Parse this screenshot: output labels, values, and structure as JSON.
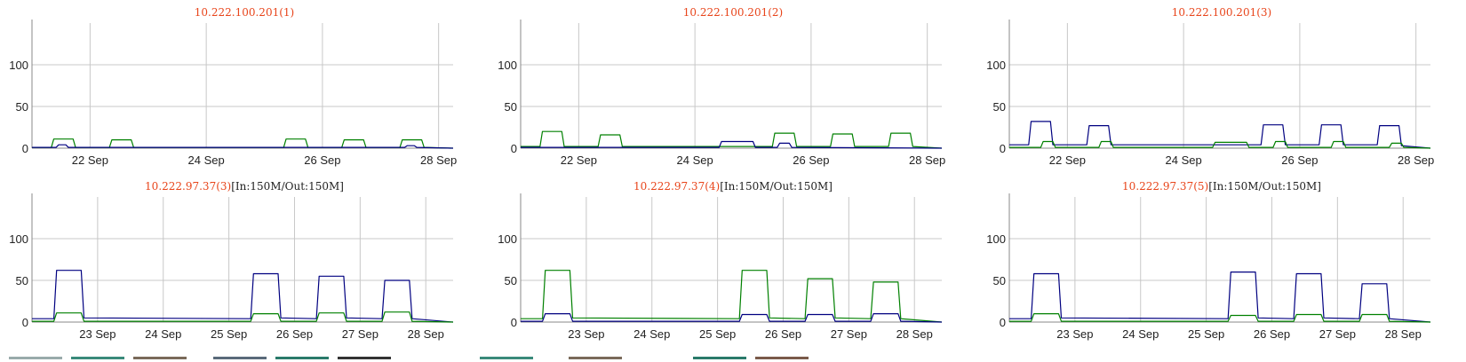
{
  "colors": {
    "in": "#000080",
    "out": "#008000",
    "grid": "#c8c8c8",
    "title": "#e8451b"
  },
  "chart_data": [
    {
      "type": "line",
      "title": "10.222.100.201(1)",
      "subtitle": "",
      "ylim": [
        0,
        150
      ],
      "yticks": [
        0,
        50,
        100
      ],
      "xlim": [
        "2016-09-21T00:00",
        "2016-09-28T06:00"
      ],
      "xticks": [
        "2016-09-22",
        "2016-09-24",
        "2016-09-26",
        "2016-09-28"
      ],
      "xtick_labels": [
        "22 Sep",
        "24 Sep",
        "26 Sep",
        "28 Sep"
      ],
      "grid": true,
      "series": [
        {
          "color": "#008000",
          "x": [
            "2016-09-21T00:00",
            "2016-09-21T08:00",
            "2016-09-21T09:00",
            "2016-09-21T17:00",
            "2016-09-21T18:00",
            "2016-09-22T08:00",
            "2016-09-22T09:00",
            "2016-09-22T17:00",
            "2016-09-22T18:00",
            "2016-09-25T08:00",
            "2016-09-25T09:00",
            "2016-09-25T17:00",
            "2016-09-25T18:00",
            "2016-09-26T08:00",
            "2016-09-26T09:00",
            "2016-09-26T17:00",
            "2016-09-26T18:00",
            "2016-09-27T08:00",
            "2016-09-27T09:00",
            "2016-09-27T17:00",
            "2016-09-27T18:00",
            "2016-09-28T06:00"
          ],
          "y": [
            1,
            1,
            11,
            11,
            1,
            1,
            10,
            10,
            1,
            1,
            11,
            11,
            1,
            1,
            10,
            10,
            1,
            1,
            10,
            10,
            1,
            0
          ]
        },
        {
          "color": "#000080",
          "x": [
            "2016-09-21T00:00",
            "2016-09-21T10:00",
            "2016-09-21T11:00",
            "2016-09-21T14:00",
            "2016-09-21T15:00",
            "2016-09-27T10:00",
            "2016-09-27T11:00",
            "2016-09-27T14:00",
            "2016-09-27T15:00",
            "2016-09-28T06:00"
          ],
          "y": [
            1,
            1,
            4,
            4,
            1,
            1,
            3,
            3,
            1,
            0
          ]
        }
      ]
    },
    {
      "type": "line",
      "title": "10.222.100.201(2)",
      "subtitle": "",
      "ylim": [
        0,
        150
      ],
      "yticks": [
        0,
        50,
        100
      ],
      "xlim": [
        "2016-09-21T00:00",
        "2016-09-28T06:00"
      ],
      "xticks": [
        "2016-09-22",
        "2016-09-24",
        "2016-09-26",
        "2016-09-28"
      ],
      "xtick_labels": [
        "22 Sep",
        "24 Sep",
        "26 Sep",
        "28 Sep"
      ],
      "grid": true,
      "series": [
        {
          "color": "#008000",
          "x": [
            "2016-09-21T00:00",
            "2016-09-21T08:00",
            "2016-09-21T09:00",
            "2016-09-21T17:00",
            "2016-09-21T18:00",
            "2016-09-22T08:00",
            "2016-09-22T09:00",
            "2016-09-22T17:00",
            "2016-09-22T18:00",
            "2016-09-25T08:00",
            "2016-09-25T09:00",
            "2016-09-25T17:00",
            "2016-09-25T18:00",
            "2016-09-26T08:00",
            "2016-09-26T09:00",
            "2016-09-26T17:00",
            "2016-09-26T18:00",
            "2016-09-27T08:00",
            "2016-09-27T09:00",
            "2016-09-27T17:00",
            "2016-09-27T18:00",
            "2016-09-28T06:00"
          ],
          "y": [
            2,
            2,
            20,
            20,
            2,
            2,
            16,
            16,
            2,
            2,
            18,
            18,
            2,
            2,
            17,
            17,
            2,
            2,
            18,
            18,
            2,
            0
          ]
        },
        {
          "color": "#000080",
          "x": [
            "2016-09-21T00:00",
            "2016-09-24T10:00",
            "2016-09-24T11:00",
            "2016-09-25T00:00",
            "2016-09-25T01:00",
            "2016-09-25T10:00",
            "2016-09-25T11:00",
            "2016-09-25T15:00",
            "2016-09-25T16:00",
            "2016-09-28T06:00"
          ],
          "y": [
            1,
            1,
            8,
            8,
            1,
            1,
            6,
            6,
            1,
            0
          ]
        }
      ]
    },
    {
      "type": "line",
      "title": "10.222.100.201(3)",
      "subtitle": "",
      "ylim": [
        0,
        150
      ],
      "yticks": [
        0,
        50,
        100
      ],
      "xlim": [
        "2016-09-21T00:00",
        "2016-09-28T06:00"
      ],
      "xticks": [
        "2016-09-22",
        "2016-09-24",
        "2016-09-26",
        "2016-09-28"
      ],
      "xtick_labels": [
        "22 Sep",
        "24 Sep",
        "26 Sep",
        "28 Sep"
      ],
      "grid": true,
      "series": [
        {
          "color": "#000080",
          "x": [
            "2016-09-21T00:00",
            "2016-09-21T08:00",
            "2016-09-21T09:00",
            "2016-09-21T17:00",
            "2016-09-21T18:00",
            "2016-09-22T08:00",
            "2016-09-22T09:00",
            "2016-09-22T17:00",
            "2016-09-22T18:00",
            "2016-09-25T08:00",
            "2016-09-25T09:00",
            "2016-09-25T17:00",
            "2016-09-25T18:00",
            "2016-09-26T08:00",
            "2016-09-26T09:00",
            "2016-09-26T17:00",
            "2016-09-26T18:00",
            "2016-09-27T08:00",
            "2016-09-27T09:00",
            "2016-09-27T17:00",
            "2016-09-27T18:00",
            "2016-09-28T06:00"
          ],
          "y": [
            4,
            4,
            32,
            32,
            4,
            4,
            27,
            27,
            4,
            4,
            28,
            28,
            4,
            4,
            28,
            28,
            4,
            4,
            27,
            27,
            3,
            0
          ]
        },
        {
          "color": "#008000",
          "x": [
            "2016-09-21T00:00",
            "2016-09-21T13:00",
            "2016-09-21T14:00",
            "2016-09-21T18:00",
            "2016-09-21T19:00",
            "2016-09-22T13:00",
            "2016-09-22T14:00",
            "2016-09-22T18:00",
            "2016-09-22T19:00",
            "2016-09-24T12:00",
            "2016-09-24T13:00",
            "2016-09-25T02:00",
            "2016-09-25T03:00",
            "2016-09-25T13:00",
            "2016-09-25T14:00",
            "2016-09-25T18:00",
            "2016-09-25T19:00",
            "2016-09-26T13:00",
            "2016-09-26T14:00",
            "2016-09-26T18:00",
            "2016-09-26T19:00",
            "2016-09-27T13:00",
            "2016-09-27T14:00",
            "2016-09-27T18:00",
            "2016-09-27T19:00",
            "2016-09-28T06:00"
          ],
          "y": [
            1,
            1,
            8,
            8,
            1,
            1,
            8,
            8,
            1,
            1,
            7,
            7,
            1,
            1,
            8,
            8,
            1,
            1,
            8,
            8,
            1,
            1,
            6,
            6,
            1,
            0
          ]
        }
      ]
    },
    {
      "type": "line",
      "title": "10.222.97.37(3)",
      "subtitle": "[In:150M/Out:150M]",
      "ylim": [
        0,
        150
      ],
      "yticks": [
        0,
        50,
        100
      ],
      "xlim": [
        "2016-09-22T00:00",
        "2016-09-28T10:00"
      ],
      "xticks": [
        "2016-09-23",
        "2016-09-24",
        "2016-09-25",
        "2016-09-26",
        "2016-09-27",
        "2016-09-28"
      ],
      "xtick_labels": [
        "23 Sep",
        "24 Sep",
        "25 Sep",
        "26 Sep",
        "27 Sep",
        "28 Sep"
      ],
      "grid": true,
      "series": [
        {
          "color": "#000080",
          "x": [
            "2016-09-22T00:00",
            "2016-09-22T08:00",
            "2016-09-22T09:00",
            "2016-09-22T18:00",
            "2016-09-22T19:00",
            "2016-09-25T08:00",
            "2016-09-25T09:00",
            "2016-09-25T18:00",
            "2016-09-25T19:00",
            "2016-09-26T08:00",
            "2016-09-26T09:00",
            "2016-09-26T18:00",
            "2016-09-26T19:00",
            "2016-09-27T08:00",
            "2016-09-27T09:00",
            "2016-09-27T18:00",
            "2016-09-27T19:00",
            "2016-09-28T10:00"
          ],
          "y": [
            4,
            4,
            62,
            62,
            5,
            4,
            58,
            58,
            5,
            4,
            55,
            55,
            5,
            4,
            50,
            50,
            4,
            0
          ]
        },
        {
          "color": "#008000",
          "x": [
            "2016-09-22T00:00",
            "2016-09-22T08:00",
            "2016-09-22T09:00",
            "2016-09-22T18:00",
            "2016-09-22T19:00",
            "2016-09-25T08:00",
            "2016-09-25T09:00",
            "2016-09-25T18:00",
            "2016-09-25T19:00",
            "2016-09-26T08:00",
            "2016-09-26T09:00",
            "2016-09-26T18:00",
            "2016-09-26T19:00",
            "2016-09-27T08:00",
            "2016-09-27T09:00",
            "2016-09-27T18:00",
            "2016-09-27T19:00",
            "2016-09-28T10:00"
          ],
          "y": [
            1,
            1,
            11,
            11,
            1,
            1,
            10,
            10,
            1,
            1,
            11,
            11,
            1,
            1,
            12,
            12,
            1,
            0
          ]
        }
      ]
    },
    {
      "type": "line",
      "title": "10.222.97.37(4)",
      "subtitle": "[In:150M/Out:150M]",
      "ylim": [
        0,
        150
      ],
      "yticks": [
        0,
        50,
        100
      ],
      "xlim": [
        "2016-09-22T00:00",
        "2016-09-28T10:00"
      ],
      "xticks": [
        "2016-09-23",
        "2016-09-24",
        "2016-09-25",
        "2016-09-26",
        "2016-09-27",
        "2016-09-28"
      ],
      "xtick_labels": [
        "23 Sep",
        "24 Sep",
        "25 Sep",
        "26 Sep",
        "27 Sep",
        "28 Sep"
      ],
      "grid": true,
      "series": [
        {
          "color": "#008000",
          "x": [
            "2016-09-22T00:00",
            "2016-09-22T08:00",
            "2016-09-22T09:00",
            "2016-09-22T18:00",
            "2016-09-22T19:00",
            "2016-09-25T08:00",
            "2016-09-25T09:00",
            "2016-09-25T18:00",
            "2016-09-25T19:00",
            "2016-09-26T08:00",
            "2016-09-26T09:00",
            "2016-09-26T18:00",
            "2016-09-26T19:00",
            "2016-09-27T08:00",
            "2016-09-27T09:00",
            "2016-09-27T18:00",
            "2016-09-27T19:00",
            "2016-09-28T10:00"
          ],
          "y": [
            4,
            4,
            62,
            62,
            5,
            4,
            62,
            62,
            5,
            4,
            52,
            52,
            5,
            4,
            48,
            48,
            4,
            0
          ]
        },
        {
          "color": "#000080",
          "x": [
            "2016-09-22T00:00",
            "2016-09-22T08:00",
            "2016-09-22T09:00",
            "2016-09-22T18:00",
            "2016-09-22T19:00",
            "2016-09-25T08:00",
            "2016-09-25T09:00",
            "2016-09-25T18:00",
            "2016-09-25T19:00",
            "2016-09-26T08:00",
            "2016-09-26T09:00",
            "2016-09-26T18:00",
            "2016-09-26T19:00",
            "2016-09-27T08:00",
            "2016-09-27T09:00",
            "2016-09-27T18:00",
            "2016-09-27T19:00",
            "2016-09-28T10:00"
          ],
          "y": [
            1,
            1,
            10,
            10,
            1,
            1,
            9,
            9,
            1,
            1,
            9,
            9,
            1,
            1,
            10,
            10,
            1,
            0
          ]
        }
      ]
    },
    {
      "type": "line",
      "title": "10.222.97.37(5)",
      "subtitle": "[In:150M/Out:150M]",
      "ylim": [
        0,
        150
      ],
      "yticks": [
        0,
        50,
        100
      ],
      "xlim": [
        "2016-09-22T00:00",
        "2016-09-28T10:00"
      ],
      "xticks": [
        "2016-09-23",
        "2016-09-24",
        "2016-09-25",
        "2016-09-26",
        "2016-09-27",
        "2016-09-28"
      ],
      "xtick_labels": [
        "23 Sep",
        "24 Sep",
        "25 Sep",
        "26 Sep",
        "27 Sep",
        "28 Sep"
      ],
      "grid": true,
      "series": [
        {
          "color": "#000080",
          "x": [
            "2016-09-22T00:00",
            "2016-09-22T08:00",
            "2016-09-22T09:00",
            "2016-09-22T18:00",
            "2016-09-22T19:00",
            "2016-09-25T08:00",
            "2016-09-25T09:00",
            "2016-09-25T18:00",
            "2016-09-25T19:00",
            "2016-09-26T08:00",
            "2016-09-26T09:00",
            "2016-09-26T18:00",
            "2016-09-26T19:00",
            "2016-09-27T08:00",
            "2016-09-27T09:00",
            "2016-09-27T18:00",
            "2016-09-27T19:00",
            "2016-09-28T10:00"
          ],
          "y": [
            4,
            4,
            58,
            58,
            5,
            4,
            60,
            60,
            5,
            4,
            58,
            58,
            5,
            4,
            46,
            46,
            4,
            0
          ]
        },
        {
          "color": "#008000",
          "x": [
            "2016-09-22T00:00",
            "2016-09-22T08:00",
            "2016-09-22T09:00",
            "2016-09-22T18:00",
            "2016-09-22T19:00",
            "2016-09-25T08:00",
            "2016-09-25T09:00",
            "2016-09-25T18:00",
            "2016-09-25T19:00",
            "2016-09-26T08:00",
            "2016-09-26T09:00",
            "2016-09-26T18:00",
            "2016-09-26T19:00",
            "2016-09-27T08:00",
            "2016-09-27T09:00",
            "2016-09-27T18:00",
            "2016-09-27T19:00",
            "2016-09-28T10:00"
          ],
          "y": [
            1,
            1,
            10,
            10,
            1,
            1,
            8,
            8,
            1,
            1,
            9,
            9,
            1,
            1,
            9,
            9,
            1,
            0
          ]
        }
      ]
    }
  ]
}
